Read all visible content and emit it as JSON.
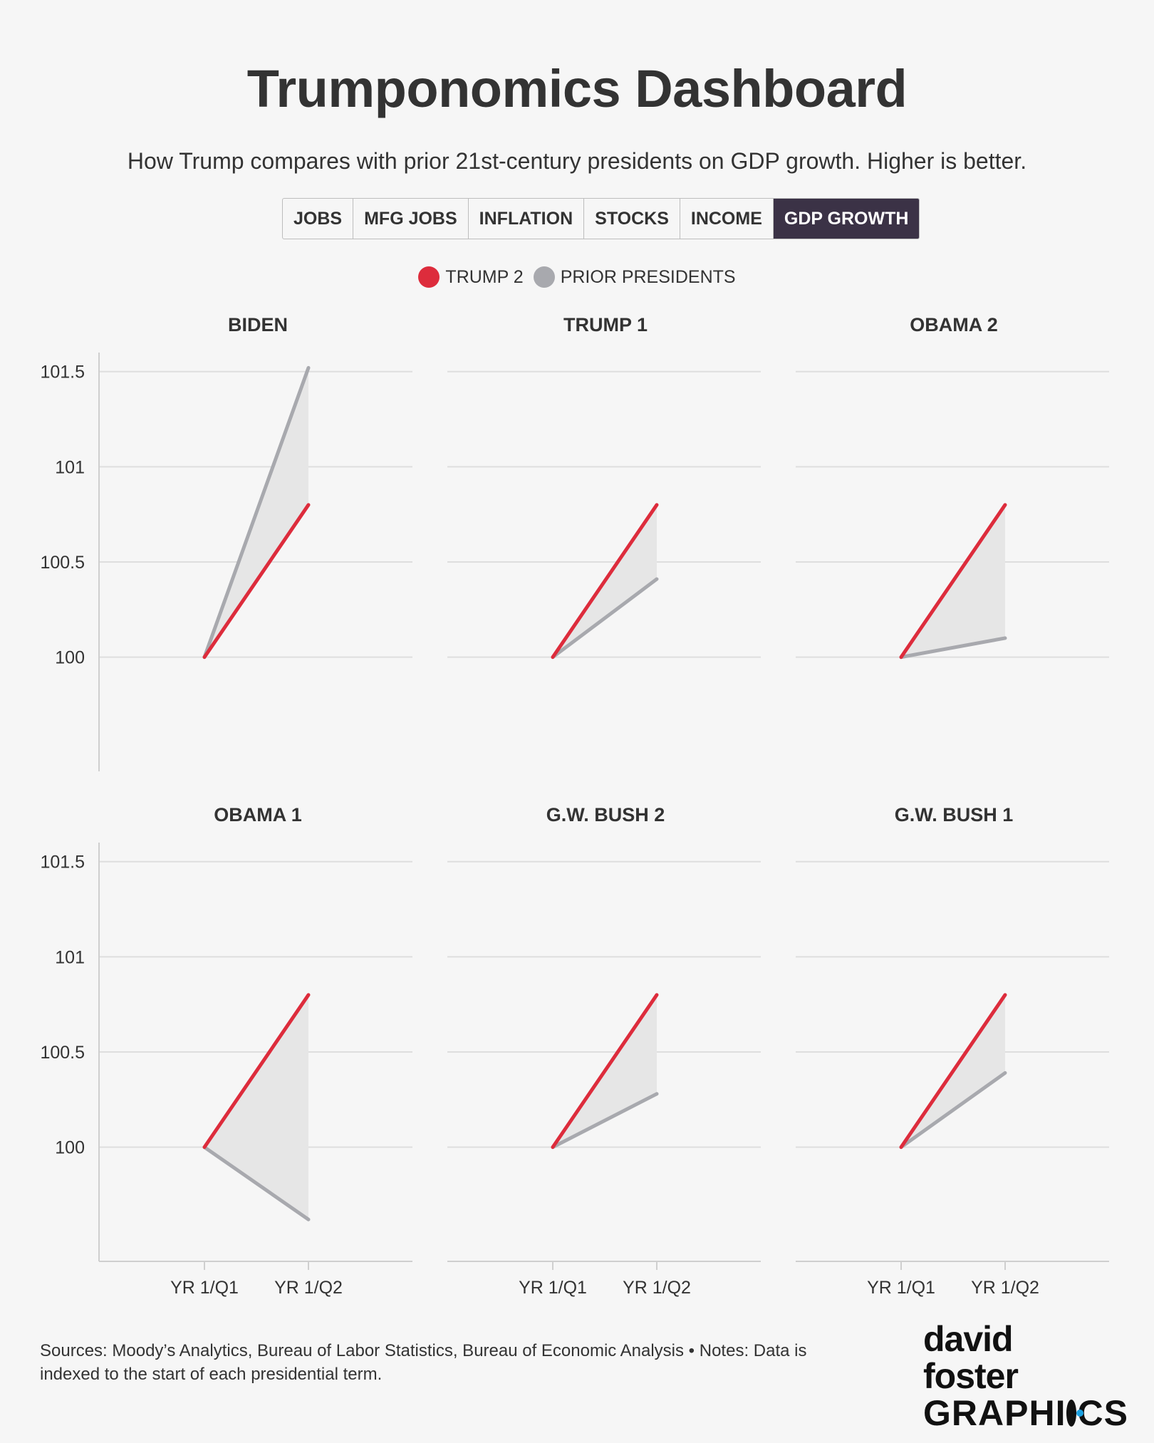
{
  "header": {
    "title": "Trumponomics Dashboard",
    "subtitle": "How Trump compares with prior 21st-century presidents on GDP growth. Higher is better."
  },
  "tabs": [
    {
      "label": "JOBS",
      "active": false
    },
    {
      "label": "MFG JOBS",
      "active": false
    },
    {
      "label": "INFLATION",
      "active": false
    },
    {
      "label": "STOCKS",
      "active": false
    },
    {
      "label": "INCOME",
      "active": false
    },
    {
      "label": "GDP GROWTH",
      "active": true
    }
  ],
  "legend": {
    "trump": {
      "label": "TRUMP 2",
      "color": "#dd2c3c"
    },
    "prior": {
      "label": "PRIOR PRESIDENTS",
      "color": "#a8a9ae"
    }
  },
  "footer": {
    "text": "Sources: Moody’s Analytics, Bureau of Labor Statistics, Bureau of Economic Analysis • Notes: Data is indexed to the start of each presidential term."
  },
  "logo": {
    "top": "david foster",
    "bottom_a": "GRAPHI",
    "bottom_b": "CS"
  },
  "chart_data": {
    "type": "line",
    "x": [
      "YR 1/Q1",
      "YR 1/Q2"
    ],
    "ylim": [
      99.4,
      101.6
    ],
    "yticks": [
      100,
      100.5,
      101,
      101.5
    ],
    "yticklabels": [
      "100",
      "100.5",
      "101",
      "101.5"
    ],
    "trump2": [
      100,
      100.8
    ],
    "panels": [
      {
        "title": "BIDEN",
        "values": [
          100,
          101.52
        ]
      },
      {
        "title": "TRUMP 1",
        "values": [
          100,
          100.41
        ]
      },
      {
        "title": "OBAMA 2",
        "values": [
          100,
          100.1
        ]
      },
      {
        "title": "OBAMA 1",
        "values": [
          100,
          99.62
        ]
      },
      {
        "title": "G.W. BUSH 2",
        "values": [
          100,
          100.28
        ]
      },
      {
        "title": "G.W. BUSH 1",
        "values": [
          100,
          100.39
        ]
      }
    ],
    "colors": {
      "trump": "#dd2c3c",
      "prior": "#a8a9ae",
      "fill": "#e6e6e6",
      "grid": "#dedede",
      "axis": "#cfcfcf"
    }
  }
}
